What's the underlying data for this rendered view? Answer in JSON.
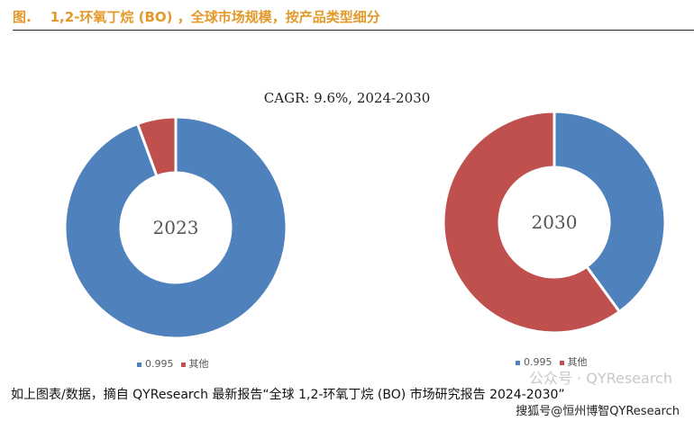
{
  "header": {
    "title": "图.    1,2-环氧丁烷 (BO) ，全球市场规模，按产品类型细分"
  },
  "chart_data": [
    {
      "type": "pie",
      "donut": true,
      "subtitle": "CAGR: 9.6%, 2024-2030",
      "center_label": "2023",
      "categories": [
        "0.995",
        "其他"
      ],
      "values": [
        94.4,
        5.6
      ],
      "colors": [
        "#4f81bd",
        "#c0504d"
      ],
      "legend": "bottom"
    },
    {
      "type": "pie",
      "donut": true,
      "center_label": "2030",
      "categories": [
        "0.995",
        "其他"
      ],
      "values": [
        40,
        60
      ],
      "colors": [
        "#4f81bd",
        "#c0504d"
      ],
      "legend": "bottom"
    }
  ],
  "footer": {
    "text": "如上图表/数据，摘自 QYResearch 最新报告“全球 1,2-环氧丁烷 (BO) 市场研究报告 2024-2030”",
    "watermark": "公众号 · QYResearch",
    "watermark2": "搜狐号@恒州博智QYResearch"
  }
}
